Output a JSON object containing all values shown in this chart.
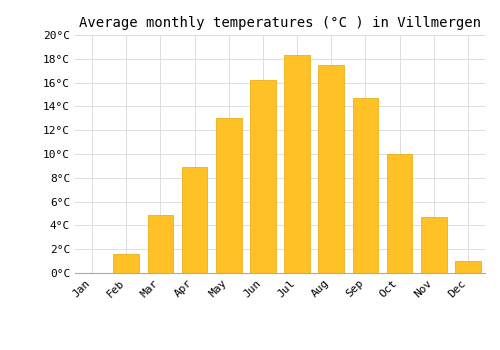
{
  "title": "Average monthly temperatures (°C ) in Villmergen",
  "months": [
    "Jan",
    "Feb",
    "Mar",
    "Apr",
    "May",
    "Jun",
    "Jul",
    "Aug",
    "Sep",
    "Oct",
    "Nov",
    "Dec"
  ],
  "values": [
    0.0,
    1.6,
    4.9,
    8.9,
    13.0,
    16.2,
    18.3,
    17.5,
    14.7,
    10.0,
    4.7,
    1.0
  ],
  "bar_color": "#FFC125",
  "bar_edge_color": "#E8A800",
  "background_color": "#FFFFFF",
  "grid_color": "#DDDDDD",
  "ylim": [
    0,
    20
  ],
  "ytick_step": 2,
  "title_fontsize": 10,
  "tick_fontsize": 8,
  "font_family": "monospace"
}
